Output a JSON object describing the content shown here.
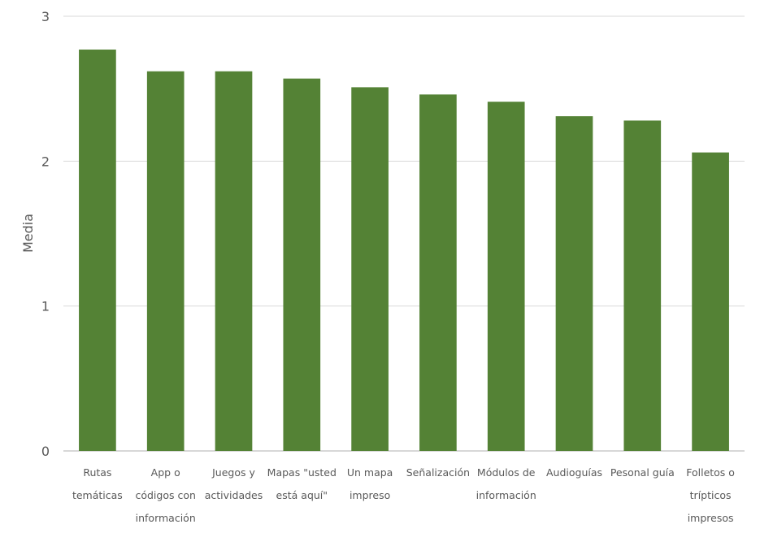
{
  "chart_data": {
    "type": "bar",
    "title": "",
    "xlabel": "",
    "ylabel": "Media",
    "ylim": [
      0,
      3
    ],
    "yticks": [
      0,
      1,
      2,
      3
    ],
    "grid": true,
    "bar_color": "#548235",
    "categories": [
      [
        "Rutas",
        "temáticas"
      ],
      [
        "App o",
        "códigos con",
        "información"
      ],
      [
        "Juegos y",
        "actividades"
      ],
      [
        "Mapas \"usted",
        "está aquí\""
      ],
      [
        "Un mapa",
        "impreso"
      ],
      [
        "Señalización"
      ],
      [
        "Módulos de",
        "información"
      ],
      [
        "Audioguías"
      ],
      [
        "Pesonal guía"
      ],
      [
        "Folletos o",
        "trípticos",
        "impresos"
      ]
    ],
    "values": [
      2.77,
      2.62,
      2.62,
      2.57,
      2.51,
      2.46,
      2.41,
      2.31,
      2.28,
      2.06
    ]
  }
}
